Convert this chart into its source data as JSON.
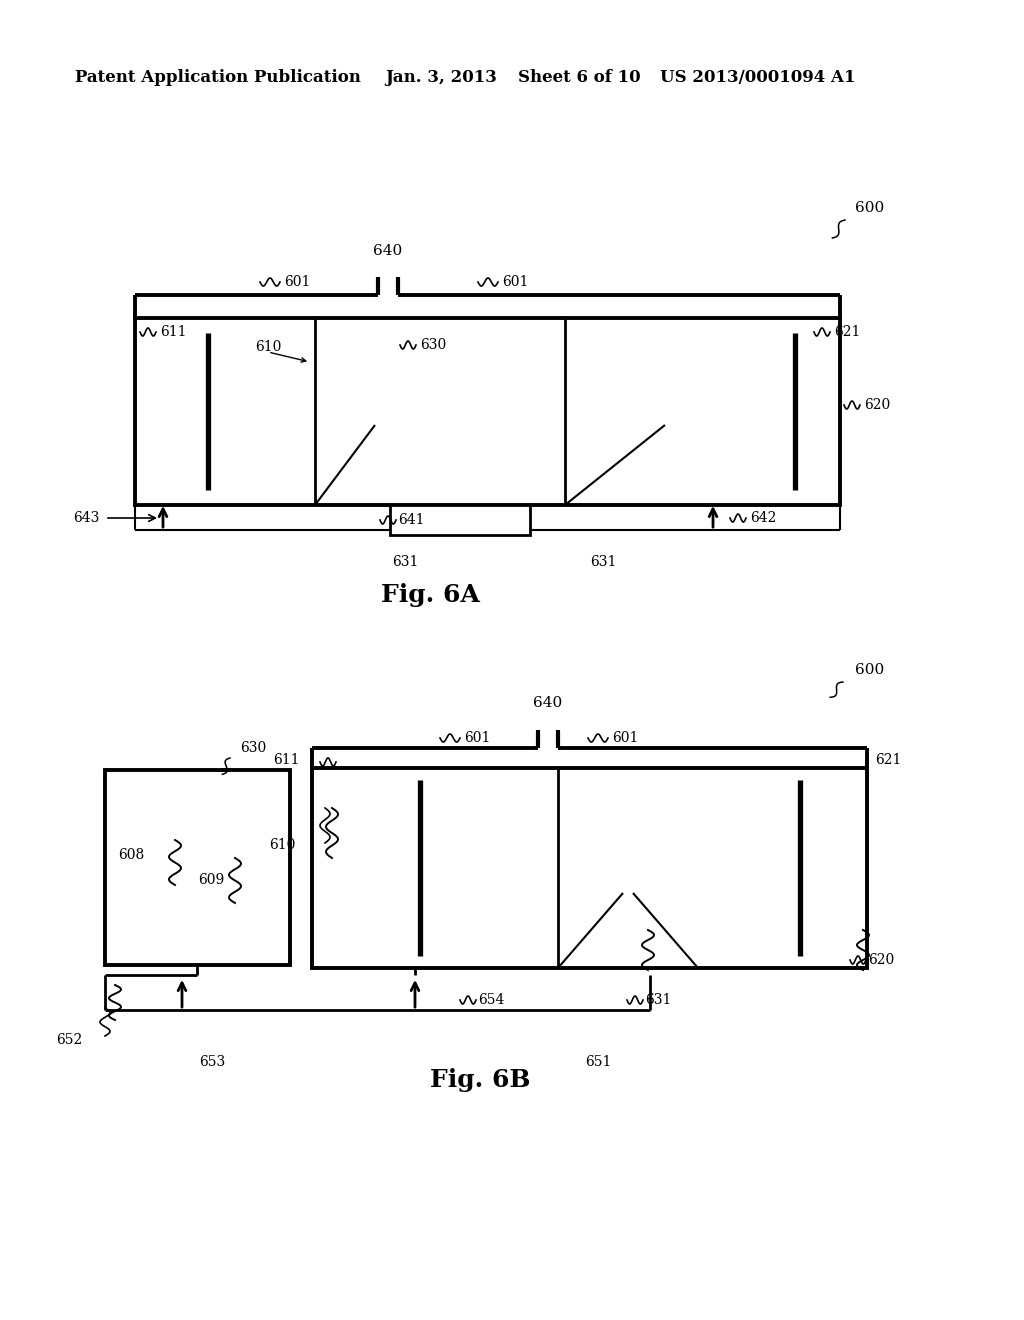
{
  "bg_color": "#ffffff",
  "header_text": "Patent Application Publication",
  "header_date": "Jan. 3, 2013",
  "header_sheet": "Sheet 6 of 10",
  "header_patent": "US 2013/0001094 A1",
  "fig6a_label": "Fig. 6A",
  "fig6b_label": "Fig. 6B",
  "fig_width": 10.24,
  "fig_height": 13.2
}
